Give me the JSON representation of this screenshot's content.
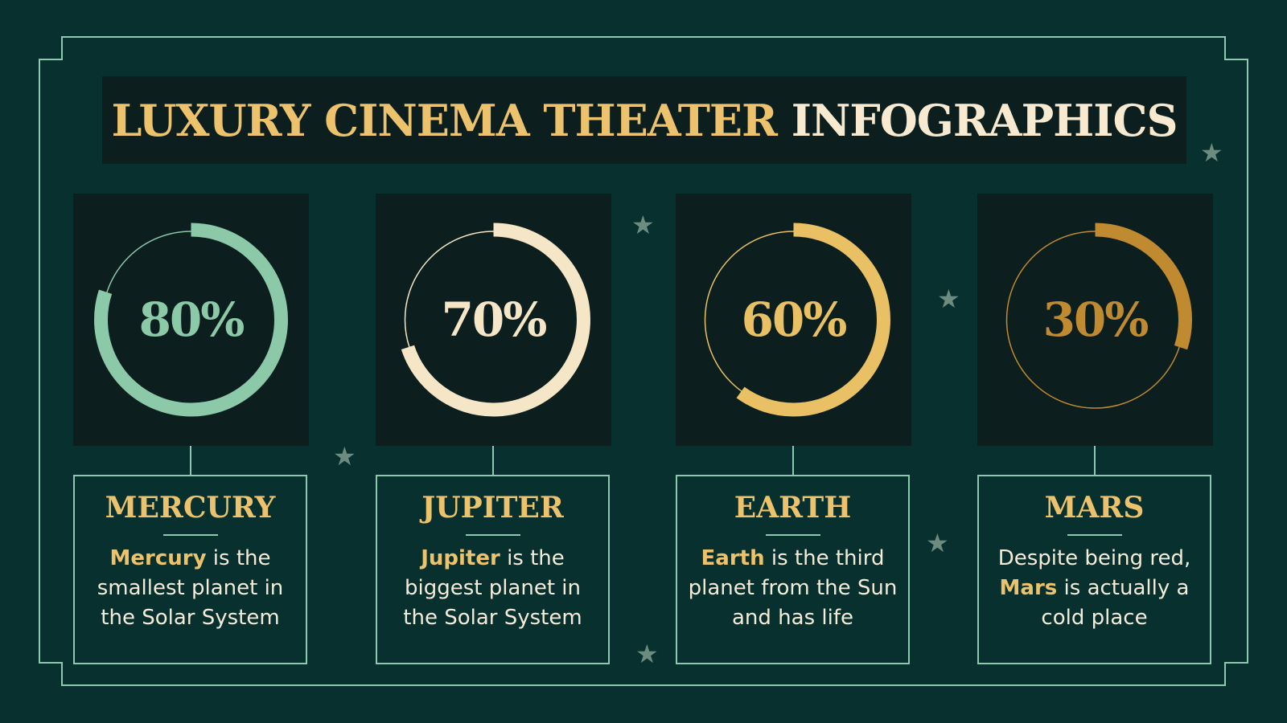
{
  "title": {
    "part1": "LUXURY CINEMA THEATER",
    "part2": "INFOGRAPHICS"
  },
  "colors": {
    "background": "#07302f",
    "panel": "#0c1f1e",
    "line": "#8cc9b0",
    "gold": "#ecc36c",
    "cream": "#f7ead0",
    "star": "#6e8b7f"
  },
  "cards": [
    {
      "percent": 80,
      "percent_label": "80%",
      "color": "#8cc9a8",
      "name": "MERCURY",
      "bold": "Mercury",
      "text": " is the\nsmallest planet in\nthe Solar System"
    },
    {
      "percent": 70,
      "percent_label": "70%",
      "color": "#f6e6c8",
      "name": "JUPITER",
      "bold": "Jupiter",
      "text": " is the\nbiggest planet in\nthe Solar System"
    },
    {
      "percent": 60,
      "percent_label": "60%",
      "color": "#e9c063",
      "name": "EARTH",
      "bold": "Earth",
      "text": " is the third\nplanet from the Sun\nand has life"
    },
    {
      "percent": 30,
      "percent_label": "30%",
      "color": "#c08a30",
      "name": "MARS",
      "pre": "Despite being red,\n",
      "bold": "Mars",
      "text": " is actually a\ncold place"
    }
  ],
  "decor": {
    "star_icon": "star-icon"
  }
}
